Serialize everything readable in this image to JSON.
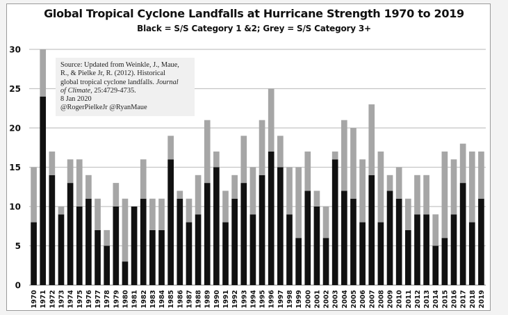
{
  "chart_data": {
    "type": "bar",
    "stacked": true,
    "title": "Global Tropical Cyclone Landfalls at Hurricane Strength 1970 to 2019",
    "subtitle": "Black = S/S Category 1 &2; Grey = S/S Category 3+",
    "xlabel": "",
    "ylabel": "",
    "ylim": [
      0,
      30
    ],
    "yticks": [
      "0",
      "5",
      "10",
      "15",
      "20",
      "25",
      "30"
    ],
    "grid": true,
    "categories": [
      "1970",
      "1971",
      "1972",
      "1973",
      "1974",
      "1975",
      "1976",
      "1977",
      "1978",
      "1979",
      "1980",
      "1981",
      "1982",
      "1983",
      "1984",
      "1985",
      "1986",
      "1987",
      "1988",
      "1989",
      "1990",
      "1991",
      "1992",
      "1993",
      "1994",
      "1995",
      "1996",
      "1997",
      "1998",
      "1999",
      "2000",
      "2001",
      "2002",
      "2003",
      "2004",
      "2005",
      "2006",
      "2007",
      "2008",
      "2009",
      "2010",
      "2011",
      "2012",
      "2013",
      "2014",
      "2015",
      "2016",
      "2017",
      "2018",
      "2019"
    ],
    "series": [
      {
        "name": "S/S Category 1 &2",
        "color": "#111111",
        "values": [
          8,
          24,
          14,
          9,
          13,
          10,
          11,
          7,
          5,
          10,
          3,
          10,
          11,
          7,
          7,
          16,
          11,
          8,
          9,
          13,
          15,
          8,
          11,
          13,
          9,
          14,
          17,
          15,
          9,
          6,
          12,
          10,
          6,
          16,
          12,
          11,
          8,
          14,
          8,
          12,
          11,
          7,
          9,
          9,
          5,
          6,
          9,
          13,
          8,
          11
        ]
      },
      {
        "name": "S/S Category 3+",
        "color": "#a6a6a6",
        "values": [
          7,
          6,
          3,
          1,
          3,
          6,
          3,
          4,
          2,
          3,
          8,
          0,
          5,
          4,
          4,
          3,
          1,
          3,
          5,
          8,
          2,
          4,
          3,
          6,
          6,
          7,
          8,
          4,
          6,
          9,
          5,
          2,
          4,
          1,
          9,
          9,
          8,
          9,
          9,
          2,
          4,
          4,
          5,
          5,
          4,
          11,
          7,
          5,
          9,
          6
        ]
      }
    ],
    "totals": [
      15,
      30,
      17,
      10,
      16,
      16,
      14,
      11,
      7,
      13,
      11,
      10,
      16,
      11,
      11,
      19,
      12,
      11,
      14,
      21,
      17,
      12,
      14,
      19,
      15,
      21,
      25,
      19,
      15,
      15,
      17,
      12,
      10,
      17,
      21,
      20,
      16,
      23,
      17,
      14,
      15,
      11,
      14,
      14,
      9,
      17,
      16,
      18,
      17,
      17
    ],
    "annotation": {
      "lines": [
        "Source: Updated from Weinkle, J., Maue,",
        "R., & Pielke Jr, R. (2012). Historical",
        "global tropical cyclone landfalls.",
        "Journal",
        "of Climate",
        ", 25:4729-4735.",
        "8 Jan 2020",
        "@RogerPielkeJr @RyanMaue"
      ]
    }
  }
}
